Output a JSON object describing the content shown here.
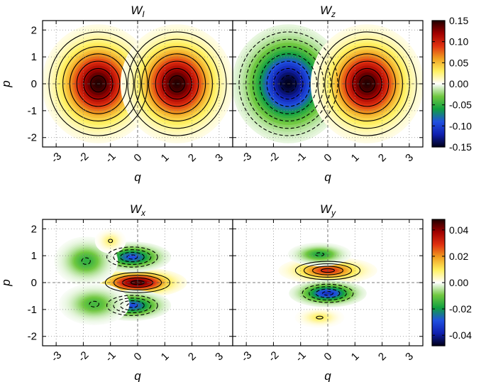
{
  "chart_data": [
    {
      "type": "heatmap",
      "title_main": "W",
      "title_sub": "I",
      "xlabel": "q",
      "ylabel": "p",
      "xlim": [
        -3.5,
        3.5
      ],
      "ylim": [
        -2.35,
        2.35
      ],
      "xticks": [
        "-3",
        "-2",
        "-1",
        "0",
        "1",
        "2",
        "3"
      ],
      "yticks": [
        "2",
        "1",
        "0",
        "-1",
        "-2"
      ],
      "grid": true,
      "components": [
        {
          "sign": 1,
          "amp": 0.15,
          "x0": -1.45,
          "y0": 0.0,
          "sx": 0.8,
          "sy": 0.85
        },
        {
          "sign": 1,
          "amp": 0.15,
          "x0": 1.45,
          "y0": 0.0,
          "sx": 0.8,
          "sy": 0.85
        }
      ]
    },
    {
      "type": "heatmap",
      "title_main": "W",
      "title_sub": "z",
      "xlabel": "q",
      "ylabel": "",
      "xlim": [
        -3.5,
        3.5
      ],
      "ylim": [
        -2.35,
        2.35
      ],
      "xticks": [
        "-3",
        "-2",
        "-1",
        "0",
        "1",
        "2",
        "3"
      ],
      "yticks": [],
      "grid": true,
      "components": [
        {
          "sign": -1,
          "amp": 0.15,
          "x0": -1.45,
          "y0": 0.0,
          "sx": 0.8,
          "sy": 0.85
        },
        {
          "sign": 1,
          "amp": 0.15,
          "x0": 1.45,
          "y0": 0.0,
          "sx": 0.8,
          "sy": 0.85
        }
      ]
    },
    {
      "type": "heatmap",
      "title_main": "W",
      "title_sub": "x",
      "xlabel": "q",
      "ylabel": "p",
      "xlim": [
        -3.5,
        3.5
      ],
      "ylim": [
        -2.35,
        2.35
      ],
      "xticks": [
        "-3",
        "-2",
        "-1",
        "0",
        "1",
        "2",
        "3"
      ],
      "yticks": [
        "2",
        "1",
        "0",
        "-1",
        "-2"
      ],
      "grid": true,
      "components": [
        {
          "sign": 1,
          "amp": 0.045,
          "x0": 0.0,
          "y0": 0.0,
          "sx": 0.7,
          "sy": 0.22
        },
        {
          "sign": -1,
          "amp": 0.03,
          "x0": -0.2,
          "y0": 0.95,
          "sx": 0.55,
          "sy": 0.22
        },
        {
          "sign": -1,
          "amp": 0.03,
          "x0": -0.2,
          "y0": -0.85,
          "sx": 0.55,
          "sy": 0.22
        },
        {
          "sign": -1,
          "amp": 0.016,
          "x0": -1.9,
          "y0": 0.8,
          "sx": 0.45,
          "sy": 0.35
        },
        {
          "sign": -1,
          "amp": 0.014,
          "x0": -1.6,
          "y0": -0.8,
          "sx": 0.5,
          "sy": 0.3
        },
        {
          "sign": 1,
          "amp": 0.009,
          "x0": -1.0,
          "y0": 1.55,
          "sx": 0.22,
          "sy": 0.18
        }
      ]
    },
    {
      "type": "heatmap",
      "title_main": "W",
      "title_sub": "y",
      "xlabel": "q",
      "ylabel": "",
      "xlim": [
        -3.5,
        3.5
      ],
      "ylim": [
        -2.35,
        2.35
      ],
      "xticks": [
        "-3",
        "-2",
        "-1",
        "0",
        "1",
        "2",
        "3"
      ],
      "yticks": [],
      "grid": true,
      "components": [
        {
          "sign": 1,
          "amp": 0.03,
          "x0": 0.0,
          "y0": 0.45,
          "sx": 0.7,
          "sy": 0.2
        },
        {
          "sign": -1,
          "amp": 0.035,
          "x0": 0.0,
          "y0": -0.4,
          "sx": 0.55,
          "sy": 0.2
        },
        {
          "sign": -1,
          "amp": 0.018,
          "x0": -0.3,
          "y0": 1.05,
          "sx": 0.45,
          "sy": 0.17
        },
        {
          "sign": 1,
          "amp": 0.01,
          "x0": -0.3,
          "y0": -1.3,
          "sx": 0.35,
          "sy": 0.15
        }
      ]
    }
  ],
  "colorbars": [
    {
      "range": [
        -0.15,
        0.15
      ],
      "ticks": [
        "0.15",
        "0.10",
        "0.05",
        "0.00",
        "-0.05",
        "-0.10",
        "-0.15"
      ]
    },
    {
      "range": [
        -0.048,
        0.048
      ],
      "ticks": [
        "0.04",
        "0.02",
        "0.00",
        "-0.02",
        "-0.04"
      ]
    }
  ],
  "colormap": [
    "#000018",
    "#1020b0",
    "#2050e0",
    "#10a040",
    "#70c840",
    "#ffffff",
    "#fff060",
    "#f0a020",
    "#e03010",
    "#a00000",
    "#200000"
  ]
}
